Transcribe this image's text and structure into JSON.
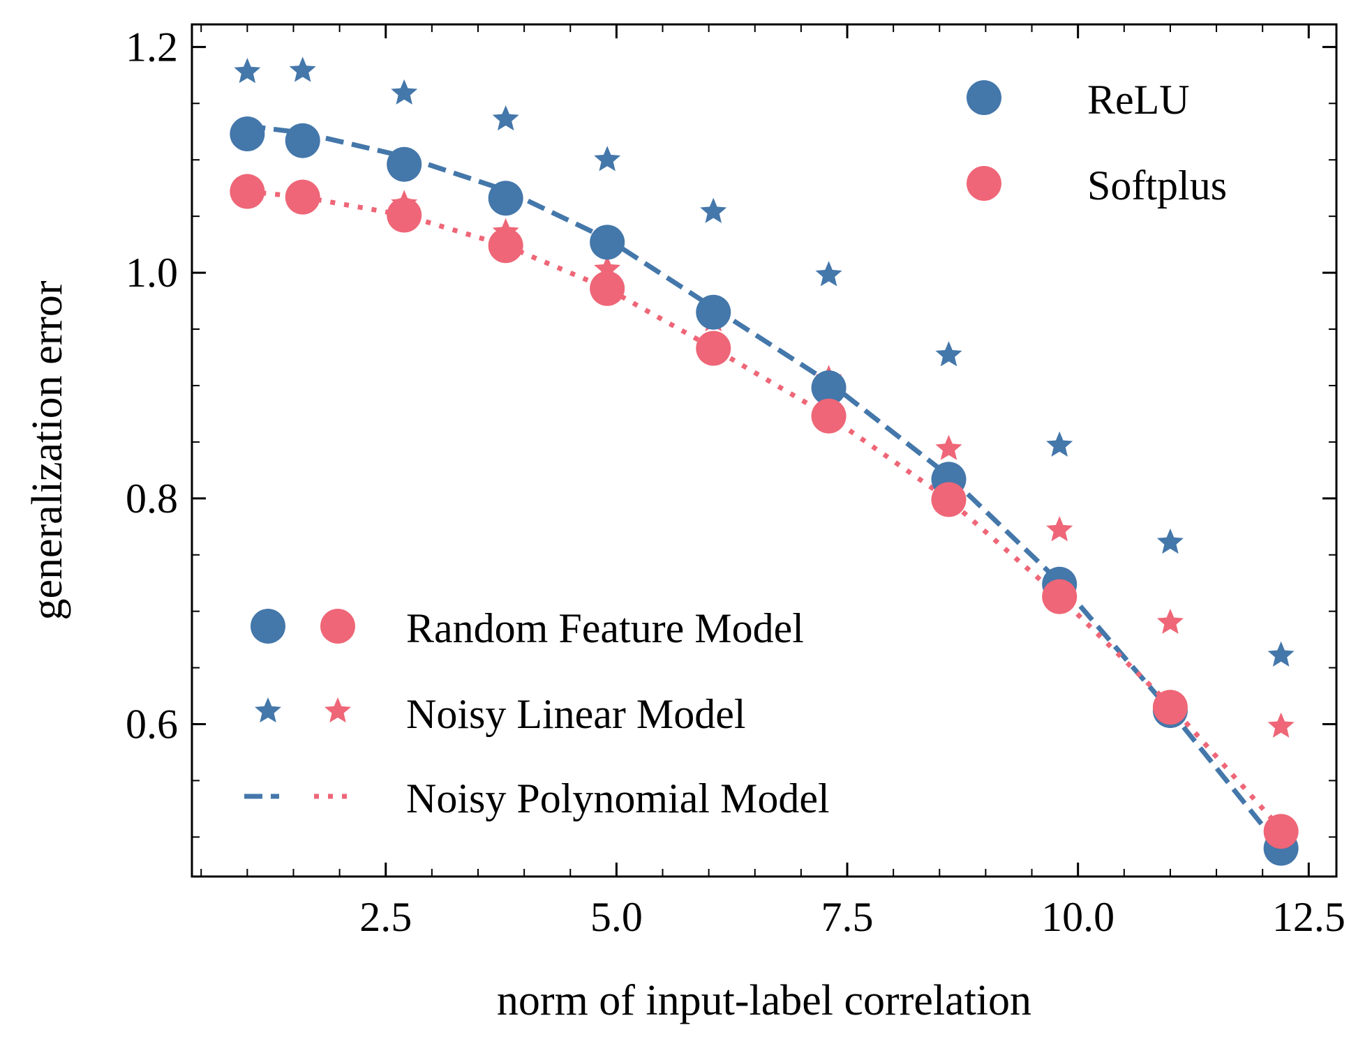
{
  "chart_data": {
    "type": "scatter",
    "xlabel": "norm of input-label correlation",
    "ylabel": "generalization error",
    "xlim": [
      0.4,
      12.8
    ],
    "ylim": [
      0.465,
      1.22
    ],
    "xticks": [
      2.5,
      5.0,
      7.5,
      10.0,
      12.5
    ],
    "xtick_labels": [
      "2.5",
      "5.0",
      "7.5",
      "10.0",
      "12.5"
    ],
    "yticks": [
      0.6,
      0.8,
      1.0,
      1.2
    ],
    "ytick_labels": [
      "0.6",
      "0.8",
      "1.0",
      "1.2"
    ],
    "grid": false,
    "x": [
      1.0,
      1.6,
      2.7,
      3.8,
      4.9,
      6.05,
      7.3,
      8.6,
      9.8,
      11.0,
      12.2
    ],
    "series": [
      {
        "name": "ReLU",
        "kind": "Random Feature Model",
        "marker": "circle",
        "color": "#4477aa",
        "values": [
          1.123,
          1.117,
          1.096,
          1.066,
          1.027,
          0.965,
          0.898,
          0.817,
          0.724,
          0.612,
          0.49
        ]
      },
      {
        "name": "Softplus",
        "kind": "Random Feature Model",
        "marker": "circle",
        "color": "#ee6677",
        "values": [
          1.072,
          1.067,
          1.051,
          1.024,
          0.986,
          0.933,
          0.873,
          0.799,
          0.713,
          0.615,
          0.505
        ]
      },
      {
        "name": "ReLU",
        "kind": "Noisy Linear Model",
        "marker": "star",
        "color": "#4477aa",
        "values": [
          1.178,
          1.179,
          1.159,
          1.136,
          1.1,
          1.054,
          0.998,
          0.927,
          0.847,
          0.761,
          0.661
        ]
      },
      {
        "name": "Softplus",
        "kind": "Noisy Linear Model",
        "marker": "star",
        "color": "#ee6677",
        "values": [
          1.072,
          1.067,
          1.061,
          1.036,
          1.003,
          0.958,
          0.906,
          0.844,
          0.772,
          0.69,
          0.598
        ]
      },
      {
        "name": "ReLU",
        "kind": "Noisy Polynomial Model",
        "marker": "dashed-line",
        "color": "#4477aa",
        "x": [
          1.0,
          1.6,
          2.7,
          3.8,
          4.9,
          6.05,
          7.3,
          8.6,
          9.8,
          11.0,
          12.2
        ],
        "values": [
          1.13,
          1.124,
          1.103,
          1.073,
          1.03,
          0.969,
          0.903,
          0.82,
          0.726,
          0.612,
          0.49
        ]
      },
      {
        "name": "Softplus",
        "kind": "Noisy Polynomial Model",
        "marker": "dotted-line",
        "color": "#ee6677",
        "x": [
          1.0,
          1.6,
          2.7,
          3.8,
          4.9,
          6.05,
          7.3,
          8.6,
          9.8,
          11.0,
          12.2
        ],
        "values": [
          1.072,
          1.067,
          1.051,
          1.024,
          0.986,
          0.933,
          0.873,
          0.799,
          0.713,
          0.617,
          0.507
        ]
      }
    ],
    "legend_activation": {
      "placement": "top-right",
      "entries": [
        {
          "label": "ReLU",
          "color": "#4477aa"
        },
        {
          "label": "Softplus",
          "color": "#ee6677"
        }
      ]
    },
    "legend_model": {
      "placement": "lower-left",
      "entries": [
        {
          "label": "Random Feature Model",
          "marker": "circle"
        },
        {
          "label": "Noisy Linear Model",
          "marker": "star"
        },
        {
          "label": "Noisy Polynomial Model",
          "marker": "line"
        }
      ]
    }
  }
}
